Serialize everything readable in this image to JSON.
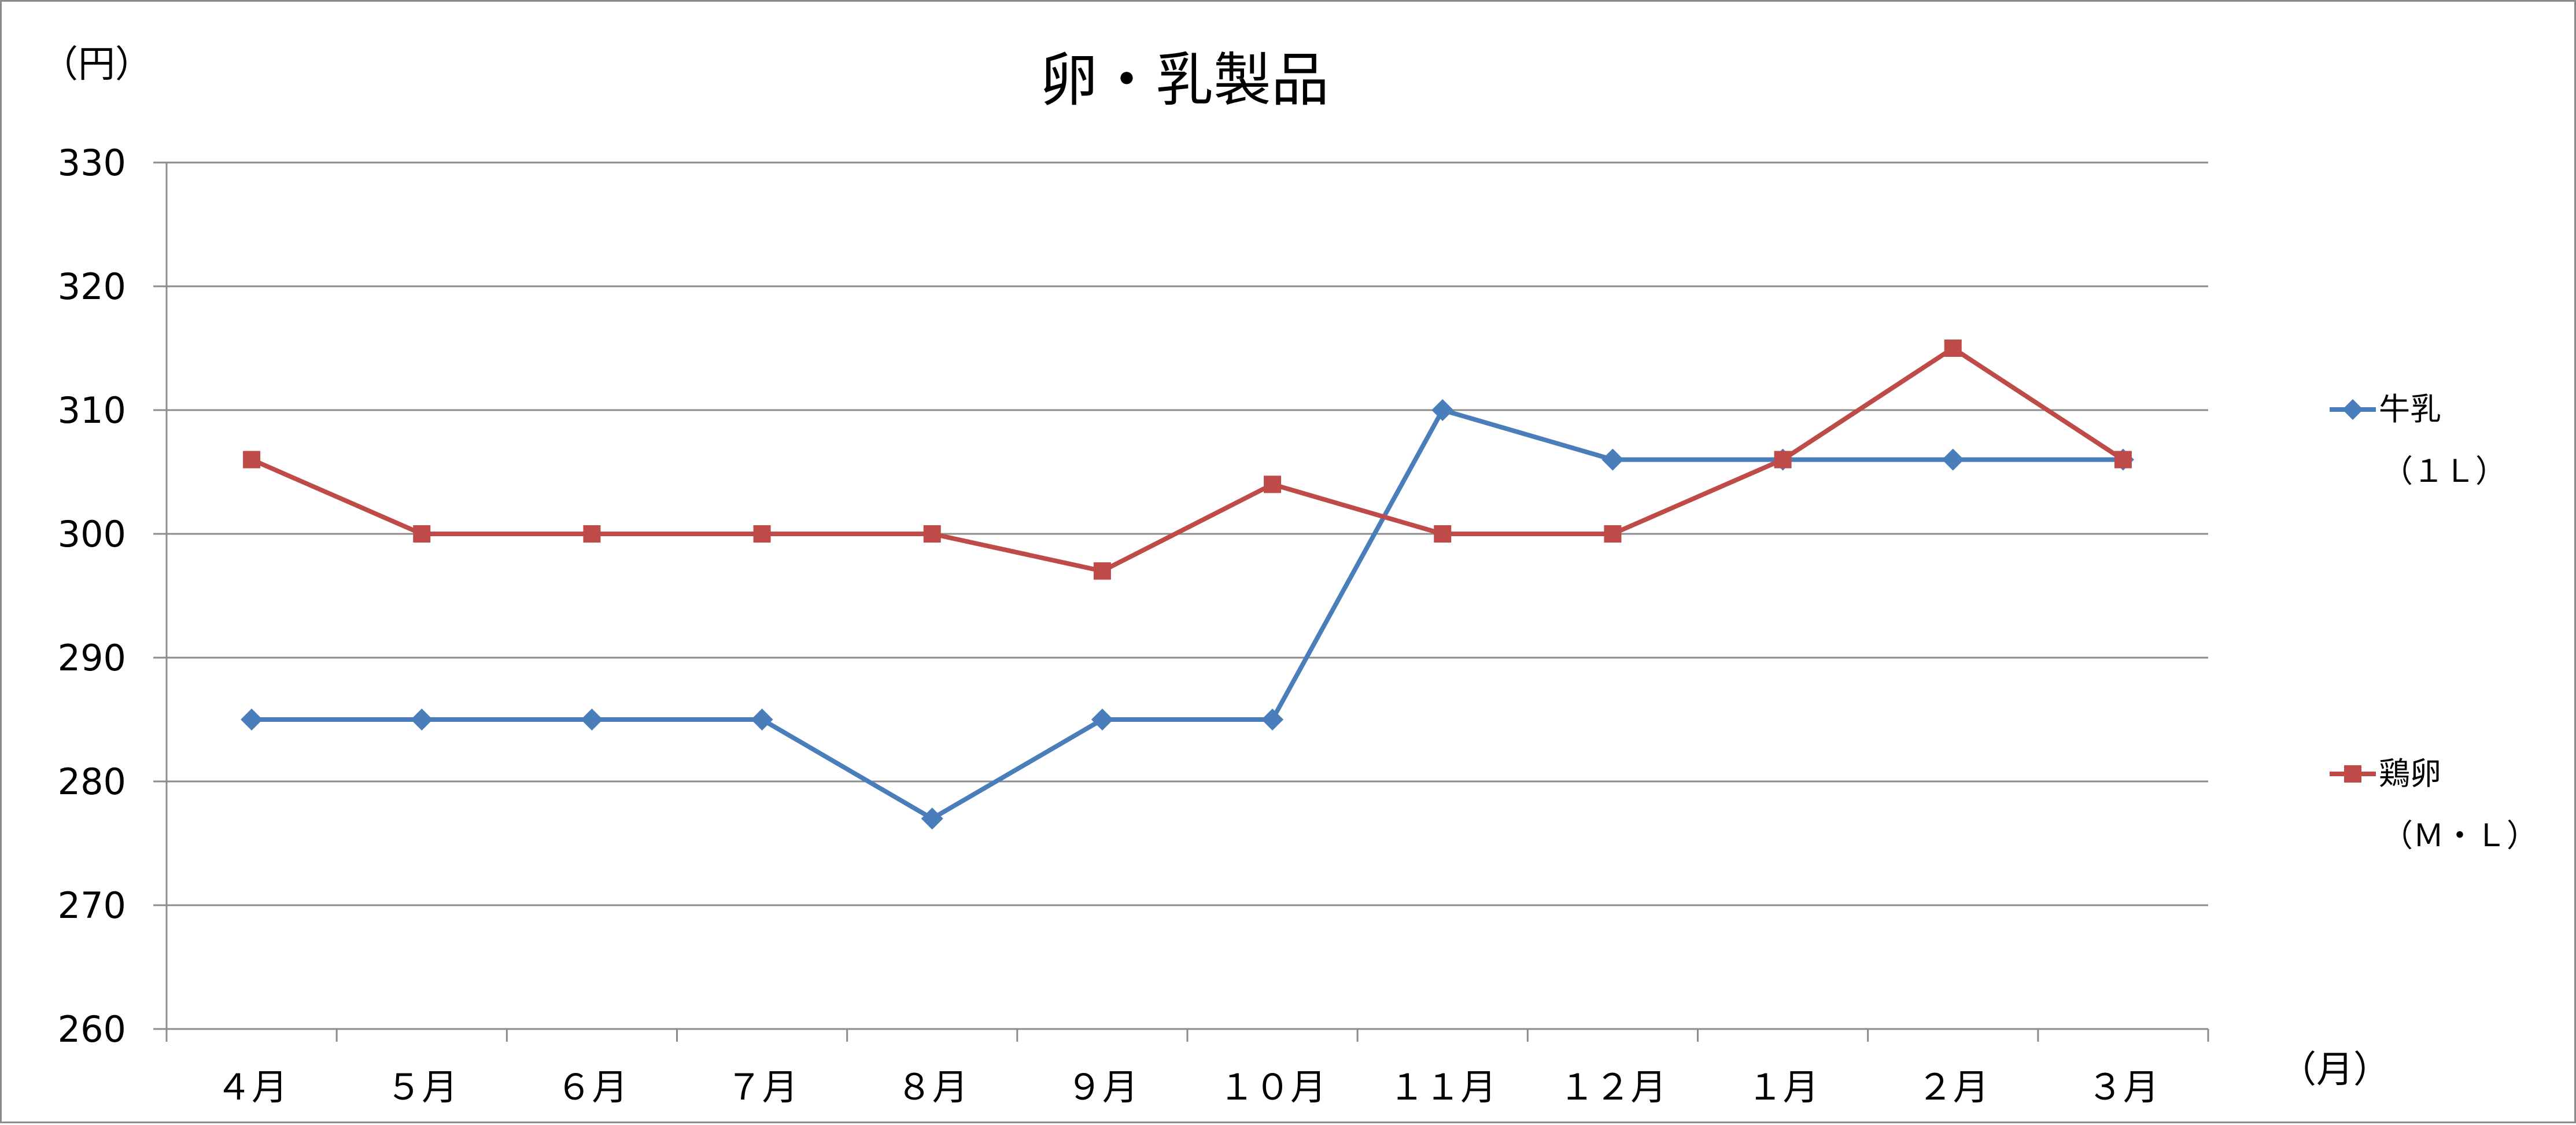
{
  "chart_data": {
    "type": "line",
    "title": "卵・乳製品",
    "ylabel": "（円）",
    "xlabel": "（月）",
    "ylim": [
      260,
      330
    ],
    "y_ticks": [
      "330",
      "320",
      "310",
      "300",
      "290",
      "280",
      "270",
      "260"
    ],
    "categories": [
      "４月",
      "５月",
      "６月",
      "７月",
      "８月",
      "９月",
      "１０月",
      "１１月",
      "１２月",
      "１月",
      "２月",
      "３月"
    ],
    "grid": true,
    "legend_position": "right",
    "series": [
      {
        "name": "牛乳",
        "name_sub": "（１Ｌ）",
        "color": "#4a7ebb",
        "marker": "diamond",
        "values": [
          285,
          285,
          285,
          285,
          277,
          285,
          285,
          310,
          306,
          306,
          306,
          306
        ]
      },
      {
        "name": "鶏卵",
        "name_sub": "（Ｍ・Ｌ）",
        "color": "#be4b48",
        "marker": "square",
        "values": [
          306,
          300,
          300,
          300,
          300,
          297,
          304,
          300,
          300,
          306,
          315,
          306
        ]
      }
    ]
  }
}
